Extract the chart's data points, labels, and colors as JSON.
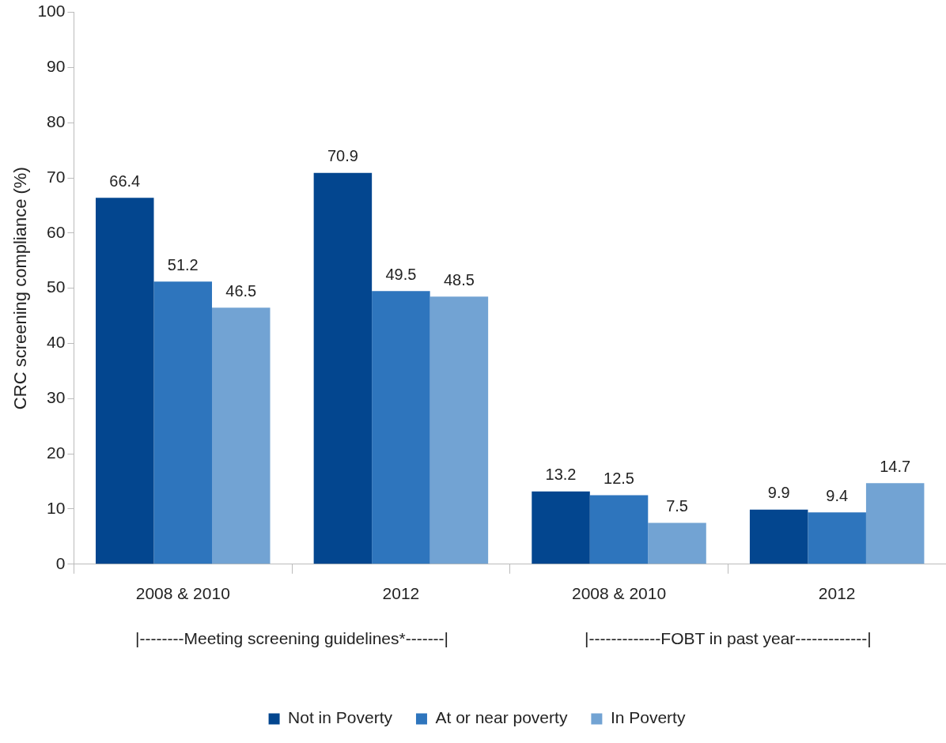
{
  "chart_data": {
    "type": "bar",
    "ylabel": "CRC screening compliance (%)",
    "categories": [
      "2008 & 2010",
      "2012",
      "2008 & 2010",
      "2012"
    ],
    "series": [
      {
        "name": "Not in Poverty",
        "color": "#03468f",
        "values": [
          66.4,
          70.9,
          13.2,
          9.9
        ]
      },
      {
        "name": "At or near poverty",
        "color": "#2e75bd",
        "values": [
          51.2,
          49.5,
          12.5,
          9.4
        ]
      },
      {
        "name": "In Poverty",
        "color": "#72a3d3",
        "values": [
          46.5,
          48.5,
          7.5,
          14.7
        ]
      }
    ],
    "ylim": [
      0,
      100
    ],
    "yticks": [
      0,
      10,
      20,
      30,
      40,
      50,
      60,
      70,
      80,
      90,
      100
    ],
    "grid": false,
    "legend": "bottom",
    "data_labels": true,
    "annotations": [
      "|--------Meeting screening guidelines*-------|",
      "|-------------FOBT in past year-------------|"
    ]
  }
}
